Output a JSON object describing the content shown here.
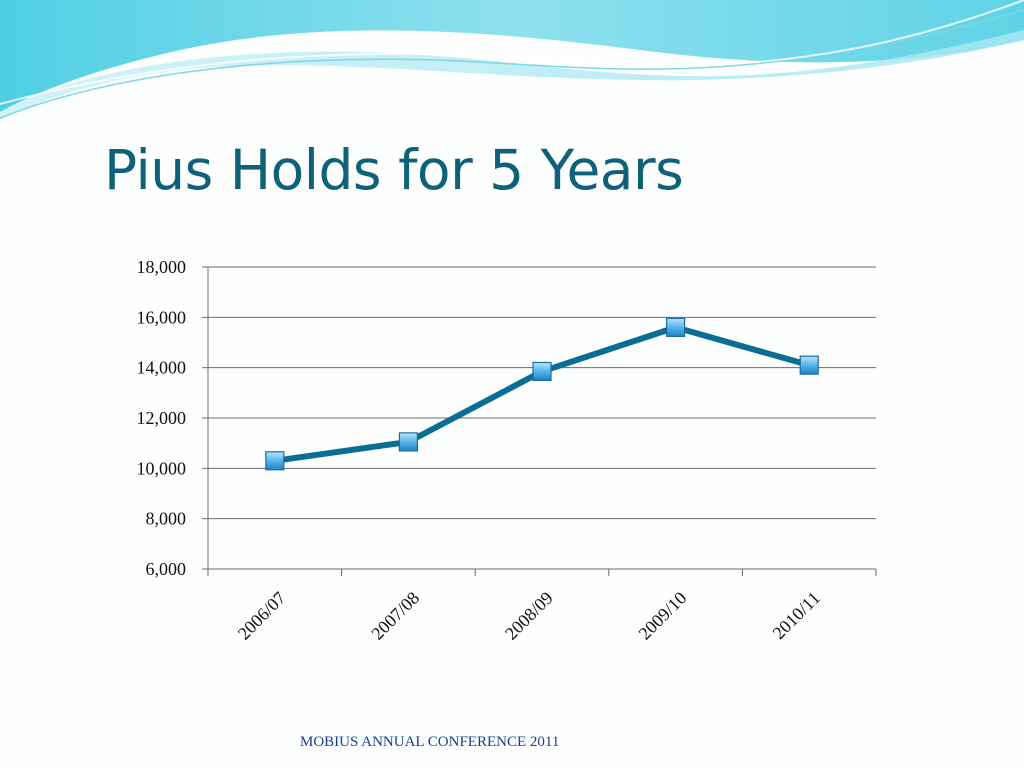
{
  "slide": {
    "title": "Pius Holds for 5 Years",
    "footer": "MOBIUS ANNUAL CONFERENCE 2011"
  },
  "colors": {
    "title": "#0e6178",
    "line": "#0a6d93",
    "marker": "#55b6ea",
    "wave_dark": "#5fd3e6",
    "wave_light": "#bfeef4",
    "footer": "#1b3f8f"
  },
  "chart_data": {
    "type": "line",
    "title": "",
    "xlabel": "",
    "ylabel": "",
    "categories": [
      "2006/07",
      "2007/08",
      "2008/09",
      "2009/10",
      "2010/11"
    ],
    "series": [
      {
        "values": [
          10300,
          11050,
          13850,
          15600,
          14100
        ]
      }
    ],
    "ylim": [
      6000,
      18000
    ],
    "yticks": [
      6000,
      8000,
      10000,
      12000,
      14000,
      16000,
      18000
    ],
    "ytick_labels": [
      "6,000",
      "8,000",
      "10,000",
      "12,000",
      "14,000",
      "16,000",
      "18,000"
    ],
    "grid": true,
    "legend": "none",
    "marker": "square"
  }
}
